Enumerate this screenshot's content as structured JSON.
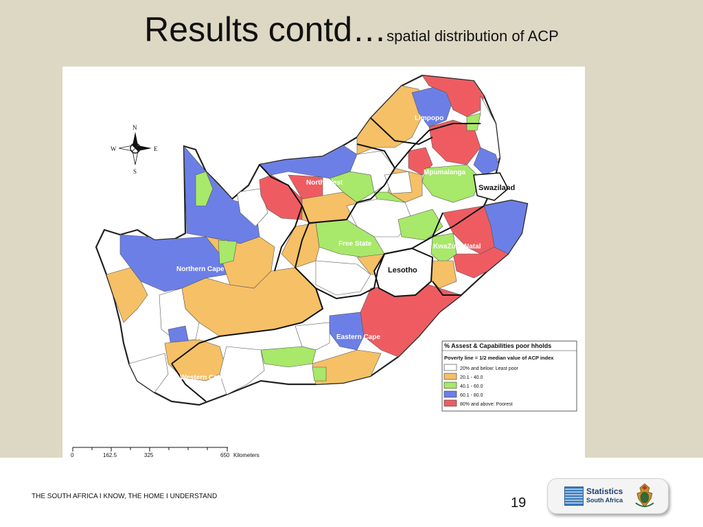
{
  "slide": {
    "title_main": "Results contd…",
    "title_sub": "spatial distribution of ACP",
    "footer": "THE SOUTH AFRICA I KNOW, THE HOME I UNDERSTAND",
    "page_number": "19"
  },
  "logo": {
    "line1": "Statistics",
    "line2": "South Africa"
  },
  "map": {
    "provinces": [
      "Limpopo",
      "Mpumalanga",
      "North West",
      "Free State",
      "KwaZulu-Natal",
      "Northern Cape",
      "Eastern Cape",
      "Western Cape"
    ],
    "neighbours": [
      "Swaziland",
      "Lesotho"
    ],
    "compass": {
      "n": "N",
      "s": "S",
      "e": "E",
      "w": "W"
    },
    "scale": {
      "ticks": [
        "0",
        "162.5",
        "325",
        "650"
      ],
      "unit": "Kilometers"
    },
    "legend": {
      "title": "% Assest & Capabilities poor hholds",
      "subtitle": "Poverty line = 1/2 median value of ACP index",
      "items": [
        {
          "label": "20% and below: Least poor",
          "color": "#ffffff"
        },
        {
          "label": "20.1 - 40.0",
          "color": "#f5c066"
        },
        {
          "label": "40.1 - 60.0",
          "color": "#a8e86a"
        },
        {
          "label": "60.1 - 80.0",
          "color": "#6c7fe6"
        },
        {
          "label": "80% and above: Poorest",
          "color": "#ee5c62"
        }
      ]
    }
  }
}
